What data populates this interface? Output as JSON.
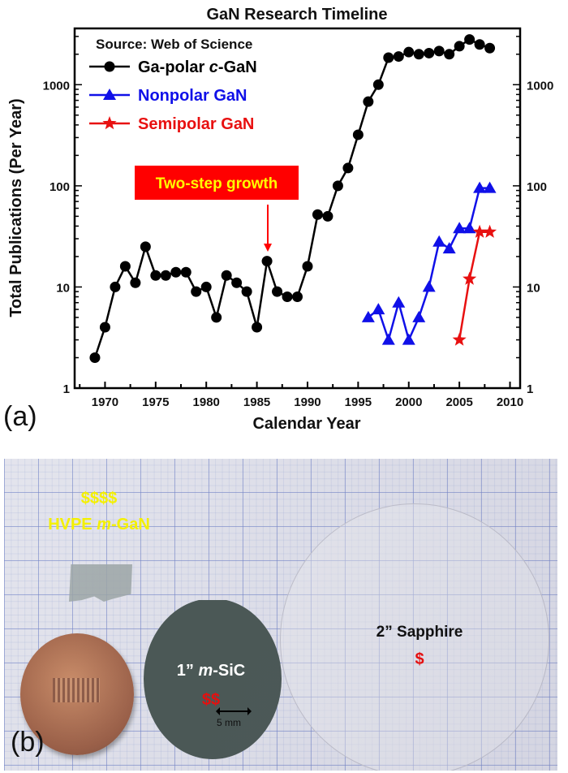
{
  "chart_data": {
    "type": "line",
    "title": "GaN Research Timeline",
    "xlabel": "Calendar Year",
    "ylabel": "Total Publications (Per Year)",
    "xlim": [
      1967,
      2011
    ],
    "ylim": [
      1,
      3600
    ],
    "yscale": "log",
    "xticks": [
      1970,
      1975,
      1980,
      1985,
      1990,
      1995,
      2000,
      2005,
      2010
    ],
    "yticks": [
      1,
      10,
      100,
      1000
    ],
    "ytick_labels": [
      "1",
      "10",
      "100",
      "1000"
    ],
    "right_axis_mirrored": true,
    "grid": false,
    "legend_position": "top-left",
    "legend_source": "Source: Web of Science",
    "series": [
      {
        "name": "Ga-polar c-GaN",
        "name_pre": "Ga-polar ",
        "name_italic": "c",
        "name_post": "-GaN",
        "color": "#000000",
        "marker": "circle",
        "x": [
          1969,
          1970,
          1971,
          1972,
          1973,
          1974,
          1975,
          1976,
          1977,
          1978,
          1979,
          1980,
          1981,
          1982,
          1983,
          1984,
          1985,
          1986,
          1987,
          1988,
          1989,
          1990,
          1991,
          1992,
          1993,
          1994,
          1995,
          1996,
          1997,
          1998,
          1999,
          2000,
          2001,
          2002,
          2003,
          2004,
          2005,
          2006,
          2007,
          2008
        ],
        "y": [
          2,
          4,
          10,
          16,
          11,
          25,
          13,
          13,
          14,
          14,
          9,
          10,
          5,
          13,
          11,
          9,
          4,
          18,
          9,
          8,
          8,
          16,
          52,
          50,
          100,
          150,
          320,
          680,
          1000,
          1850,
          1900,
          2100,
          2000,
          2050,
          2150,
          2000,
          2400,
          2800,
          2500,
          2300
        ]
      },
      {
        "name": "Nonpolar GaN",
        "color": "#1010e8",
        "marker": "triangle",
        "x": [
          1996,
          1997,
          1998,
          1999,
          2000,
          2001,
          2002,
          2003,
          2004,
          2005,
          2006,
          2007,
          2008
        ],
        "y": [
          5,
          6,
          3,
          7,
          3,
          5,
          10,
          28,
          24,
          38,
          38,
          95,
          95
        ]
      },
      {
        "name": "Semipolar GaN",
        "color": "#e81010",
        "marker": "star",
        "x": [
          2005,
          2006,
          2007,
          2008
        ],
        "y": [
          3,
          12,
          35,
          35
        ]
      }
    ],
    "annotation": {
      "text": "Two-step growth",
      "x": 1986,
      "bg": "#ff0000",
      "fg": "#ffff00"
    },
    "panel_label": "(a)"
  },
  "photo": {
    "panel_label": "(b)",
    "gan_price": "$$$$",
    "gan_label_pre": "HVPE ",
    "gan_label_italic": "m",
    "gan_label_post": "-GaN",
    "sic_label_pre": "1” ",
    "sic_label_italic": "m",
    "sic_label_post": "-SiC",
    "sic_price": "$$",
    "sapphire_label": "2” Sapphire",
    "sapphire_price": "$",
    "scale_label": "5 mm"
  }
}
